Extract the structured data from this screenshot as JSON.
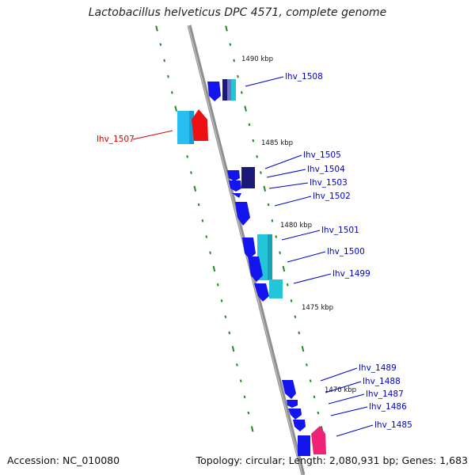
{
  "title": "Lactobacillus helveticus DPC 4571, complete genome",
  "footer": {
    "accession": "Accession: NC_010080",
    "summary": "Topology: circular; Length: 2,080,931 bp; Genes: 1,683"
  },
  "colors": {
    "backbone": "#8f8f8f",
    "tick": "#1f8a1f",
    "gene_blue": "#1414ee",
    "gene_navy": "#1a1a7a",
    "gene_cyan": "#22c6d8",
    "gene_lightblue": "#29bdf0",
    "gene_red": "#ee1111",
    "gene_pink": "#ee2277",
    "label_blue": "#0000cc",
    "label_red": "#dd0000"
  },
  "scale_labels": [
    "1490 kbp",
    "1485 kbp",
    "1480 kbp",
    "1475 kbp",
    "1470 kbp"
  ],
  "gene_labels": [
    {
      "text": "lhv_1508",
      "color": "label_blue"
    },
    {
      "text": "lhv_1507",
      "color": "label_red"
    },
    {
      "text": "lhv_1505",
      "color": "label_blue"
    },
    {
      "text": "lhv_1504",
      "color": "label_blue"
    },
    {
      "text": "lhv_1503",
      "color": "label_blue"
    },
    {
      "text": "lhv_1502",
      "color": "label_blue"
    },
    {
      "text": "lhv_1501",
      "color": "label_blue"
    },
    {
      "text": "lhv_1500",
      "color": "label_blue"
    },
    {
      "text": "lhv_1499",
      "color": "label_blue"
    },
    {
      "text": "lhv_1489",
      "color": "label_blue"
    },
    {
      "text": "lhv_1488",
      "color": "label_blue"
    },
    {
      "text": "lhv_1487",
      "color": "label_blue"
    },
    {
      "text": "lhv_1486",
      "color": "label_blue"
    },
    {
      "text": "lhv_1485",
      "color": "label_blue"
    }
  ]
}
